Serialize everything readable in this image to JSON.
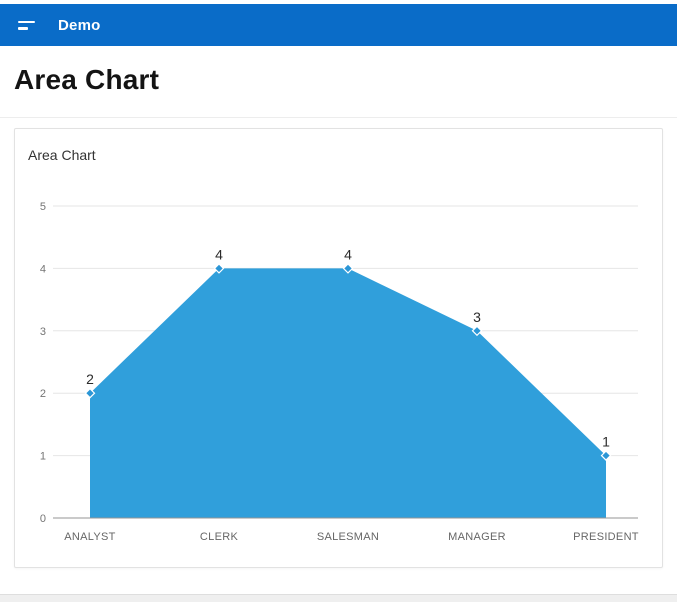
{
  "header": {
    "app_title": "Demo",
    "bg_color": "#0a6cc8",
    "menu_icon": "hamburger-two-bars"
  },
  "page": {
    "title": "Area Chart"
  },
  "card": {
    "title": "Area Chart"
  },
  "chart_data": {
    "type": "area",
    "title": "",
    "xlabel": "",
    "ylabel": "",
    "categories": [
      "ANALYST",
      "CLERK",
      "SALESMAN",
      "MANAGER",
      "PRESIDENT"
    ],
    "values": [
      2,
      4,
      4,
      3,
      1
    ],
    "data_labels": [
      "2",
      "4",
      "4",
      "3",
      "1"
    ],
    "ylim": [
      0,
      5
    ],
    "yticks": [
      0,
      1,
      2,
      3,
      4,
      5
    ],
    "grid": true,
    "legend": "none",
    "marker": "diamond",
    "colors": {
      "area_fill": "#309fdb",
      "marker_fill": "#2b96d6",
      "marker_stroke": "#ffffff",
      "gridline": "#e6e6e6",
      "axis_line": "#949494",
      "tick_label": "#747474",
      "category_label": "#666666",
      "data_label": "#2b2b2b"
    }
  }
}
